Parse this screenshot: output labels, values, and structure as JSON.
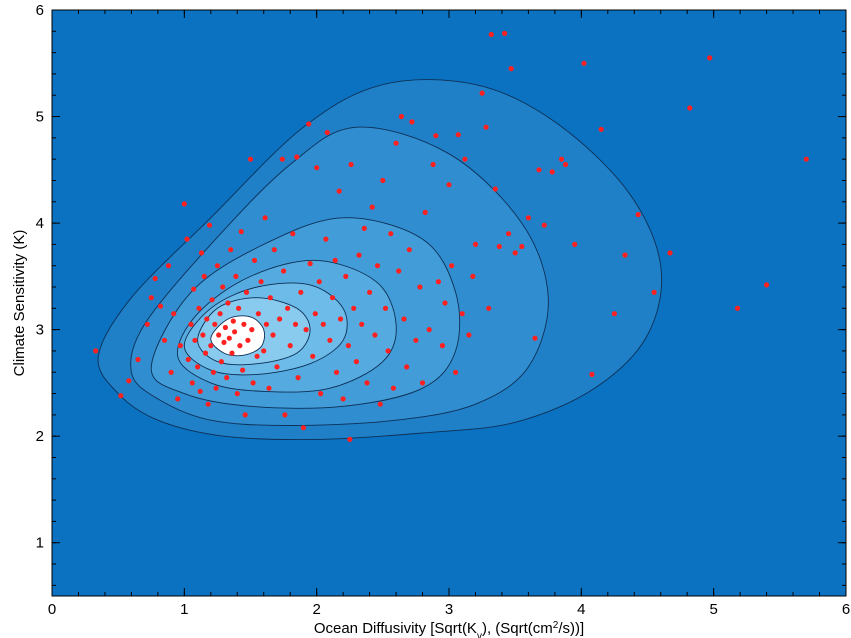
{
  "chart_data": {
    "type": "scatter",
    "title": "",
    "xlabel": "Ocean Diffusivity [Sqrt(K_v), (Sqrt(cm^2/s))]",
    "ylabel": "Climate Sensitivity (K)",
    "xlim": [
      0,
      6
    ],
    "ylim": [
      0.5,
      6
    ],
    "xticks": [
      "0",
      "1",
      "2",
      "3",
      "4",
      "5",
      "6"
    ],
    "yticks": [
      "1",
      "2",
      "3",
      "4",
      "5",
      "6"
    ],
    "grid": false,
    "legend": "none",
    "colors": {
      "background": "#0a72c0",
      "contour_fills": [
        "#1f80c8",
        "#2f8dd0",
        "#419cd8",
        "#55abe0",
        "#6cbbe8",
        "#88cbef",
        "#ffffff"
      ],
      "contour_lines": "#0d2f55",
      "points": "#ff2020"
    },
    "contours": [
      {
        "level": 1,
        "points": [
          [
            0.35,
            2.75
          ],
          [
            0.5,
            2.4
          ],
          [
            0.8,
            2.15
          ],
          [
            1.3,
            2.0
          ],
          [
            2.0,
            1.97
          ],
          [
            2.8,
            2.03
          ],
          [
            3.5,
            2.13
          ],
          [
            4.1,
            2.45
          ],
          [
            4.5,
            2.95
          ],
          [
            4.6,
            3.6
          ],
          [
            4.35,
            4.3
          ],
          [
            3.8,
            4.95
          ],
          [
            3.2,
            5.3
          ],
          [
            2.5,
            5.3
          ],
          [
            1.9,
            4.9
          ],
          [
            1.2,
            4.05
          ],
          [
            0.6,
            3.3
          ]
        ]
      },
      {
        "level": 2,
        "points": [
          [
            0.6,
            2.6
          ],
          [
            0.8,
            2.35
          ],
          [
            1.2,
            2.15
          ],
          [
            1.8,
            2.1
          ],
          [
            2.6,
            2.15
          ],
          [
            3.2,
            2.3
          ],
          [
            3.6,
            2.65
          ],
          [
            3.75,
            3.3
          ],
          [
            3.55,
            4.0
          ],
          [
            3.0,
            4.65
          ],
          [
            2.3,
            4.9
          ],
          [
            1.8,
            4.55
          ],
          [
            1.2,
            3.8
          ],
          [
            0.7,
            3.05
          ]
        ]
      },
      {
        "level": 3,
        "points": [
          [
            0.75,
            2.65
          ],
          [
            1.0,
            2.4
          ],
          [
            1.5,
            2.28
          ],
          [
            2.2,
            2.28
          ],
          [
            2.8,
            2.45
          ],
          [
            3.05,
            2.8
          ],
          [
            3.05,
            3.35
          ],
          [
            2.8,
            3.85
          ],
          [
            2.2,
            4.05
          ],
          [
            1.6,
            3.8
          ],
          [
            1.05,
            3.35
          ]
        ]
      },
      {
        "level": 4,
        "points": [
          [
            0.95,
            2.75
          ],
          [
            1.2,
            2.5
          ],
          [
            1.6,
            2.42
          ],
          [
            2.1,
            2.45
          ],
          [
            2.5,
            2.7
          ],
          [
            2.6,
            3.05
          ],
          [
            2.45,
            3.45
          ],
          [
            2.0,
            3.65
          ],
          [
            1.5,
            3.5
          ],
          [
            1.1,
            3.15
          ]
        ]
      },
      {
        "level": 5,
        "points": [
          [
            1.0,
            2.85
          ],
          [
            1.2,
            2.62
          ],
          [
            1.55,
            2.58
          ],
          [
            1.95,
            2.68
          ],
          [
            2.2,
            2.9
          ],
          [
            2.2,
            3.2
          ],
          [
            1.95,
            3.42
          ],
          [
            1.55,
            3.4
          ],
          [
            1.2,
            3.2
          ]
        ]
      },
      {
        "level": 6,
        "points": [
          [
            1.1,
            2.9
          ],
          [
            1.25,
            2.7
          ],
          [
            1.55,
            2.68
          ],
          [
            1.85,
            2.78
          ],
          [
            1.95,
            3.0
          ],
          [
            1.85,
            3.2
          ],
          [
            1.55,
            3.3
          ],
          [
            1.25,
            3.2
          ]
        ]
      },
      {
        "level": 7,
        "points": [
          [
            1.2,
            2.92
          ],
          [
            1.3,
            2.78
          ],
          [
            1.45,
            2.76
          ],
          [
            1.58,
            2.84
          ],
          [
            1.6,
            3.0
          ],
          [
            1.5,
            3.12
          ],
          [
            1.33,
            3.1
          ]
        ]
      }
    ],
    "points": [
      [
        0.33,
        2.8
      ],
      [
        0.52,
        2.38
      ],
      [
        0.58,
        2.52
      ],
      [
        0.65,
        2.72
      ],
      [
        0.72,
        3.05
      ],
      [
        0.75,
        3.3
      ],
      [
        0.78,
        3.48
      ],
      [
        0.82,
        3.22
      ],
      [
        0.85,
        2.9
      ],
      [
        0.88,
        3.6
      ],
      [
        0.9,
        2.6
      ],
      [
        0.92,
        3.15
      ],
      [
        0.95,
        2.35
      ],
      [
        0.97,
        2.85
      ],
      [
        1.0,
        4.18
      ],
      [
        1.02,
        3.85
      ],
      [
        1.03,
        2.72
      ],
      [
        1.05,
        3.05
      ],
      [
        1.06,
        2.5
      ],
      [
        1.07,
        3.38
      ],
      [
        1.08,
        2.9
      ],
      [
        1.1,
        2.65
      ],
      [
        1.11,
        3.2
      ],
      [
        1.12,
        2.42
      ],
      [
        1.13,
        3.72
      ],
      [
        1.14,
        2.95
      ],
      [
        1.15,
        3.5
      ],
      [
        1.16,
        2.78
      ],
      [
        1.17,
        3.1
      ],
      [
        1.18,
        2.3
      ],
      [
        1.19,
        3.98
      ],
      [
        1.2,
        2.85
      ],
      [
        1.21,
        3.28
      ],
      [
        1.22,
        2.6
      ],
      [
        1.23,
        3.05
      ],
      [
        1.24,
        2.45
      ],
      [
        1.25,
        3.6
      ],
      [
        1.26,
        2.95
      ],
      [
        1.27,
        3.15
      ],
      [
        1.28,
        2.7
      ],
      [
        1.29,
        3.4
      ],
      [
        1.3,
        2.88
      ],
      [
        1.31,
        3.02
      ],
      [
        1.32,
        2.55
      ],
      [
        1.33,
        3.25
      ],
      [
        1.34,
        2.92
      ],
      [
        1.35,
        3.75
      ],
      [
        1.36,
        2.78
      ],
      [
        1.37,
        3.08
      ],
      [
        1.38,
        2.98
      ],
      [
        1.39,
        3.5
      ],
      [
        1.4,
        2.4
      ],
      [
        1.41,
        3.2
      ],
      [
        1.42,
        2.85
      ],
      [
        1.43,
        3.92
      ],
      [
        1.44,
        2.62
      ],
      [
        1.45,
        3.05
      ],
      [
        1.46,
        2.2
      ],
      [
        1.47,
        3.35
      ],
      [
        1.48,
        2.9
      ],
      [
        1.5,
        4.6
      ],
      [
        1.51,
        3.0
      ],
      [
        1.52,
        2.5
      ],
      [
        1.53,
        3.65
      ],
      [
        1.55,
        2.75
      ],
      [
        1.56,
        3.15
      ],
      [
        1.58,
        3.45
      ],
      [
        1.6,
        2.8
      ],
      [
        1.61,
        4.05
      ],
      [
        1.62,
        3.05
      ],
      [
        1.64,
        2.45
      ],
      [
        1.65,
        3.3
      ],
      [
        1.67,
        2.95
      ],
      [
        1.68,
        3.75
      ],
      [
        1.7,
        2.65
      ],
      [
        1.72,
        3.1
      ],
      [
        1.74,
        4.6
      ],
      [
        1.75,
        3.55
      ],
      [
        1.76,
        2.2
      ],
      [
        1.78,
        3.2
      ],
      [
        1.8,
        2.85
      ],
      [
        1.82,
        3.9
      ],
      [
        1.84,
        3.05
      ],
      [
        1.85,
        4.62
      ],
      [
        1.86,
        2.55
      ],
      [
        1.88,
        3.35
      ],
      [
        1.9,
        2.08
      ],
      [
        1.92,
        3.0
      ],
      [
        1.94,
        4.93
      ],
      [
        1.95,
        3.62
      ],
      [
        1.97,
        2.75
      ],
      [
        1.99,
        3.15
      ],
      [
        2.0,
        4.52
      ],
      [
        2.02,
        3.45
      ],
      [
        2.03,
        2.4
      ],
      [
        2.05,
        3.05
      ],
      [
        2.07,
        3.85
      ],
      [
        2.08,
        4.85
      ],
      [
        2.1,
        2.9
      ],
      [
        2.12,
        3.3
      ],
      [
        2.14,
        3.65
      ],
      [
        2.15,
        2.6
      ],
      [
        2.17,
        4.3
      ],
      [
        2.18,
        3.1
      ],
      [
        2.2,
        2.35
      ],
      [
        2.22,
        3.5
      ],
      [
        2.24,
        2.85
      ],
      [
        2.25,
        1.97
      ],
      [
        2.26,
        4.55
      ],
      [
        2.28,
        3.2
      ],
      [
        2.3,
        2.7
      ],
      [
        2.32,
        3.7
      ],
      [
        2.34,
        3.05
      ],
      [
        2.36,
        3.95
      ],
      [
        2.38,
        2.5
      ],
      [
        2.4,
        3.35
      ],
      [
        2.42,
        4.15
      ],
      [
        2.44,
        2.95
      ],
      [
        2.46,
        3.6
      ],
      [
        2.48,
        2.3
      ],
      [
        2.5,
        4.4
      ],
      [
        2.52,
        3.2
      ],
      [
        2.54,
        2.8
      ],
      [
        2.56,
        3.9
      ],
      [
        2.58,
        2.45
      ],
      [
        2.6,
        4.75
      ],
      [
        2.62,
        3.55
      ],
      [
        2.64,
        5.0
      ],
      [
        2.66,
        3.1
      ],
      [
        2.68,
        2.65
      ],
      [
        2.7,
        3.75
      ],
      [
        2.72,
        4.95
      ],
      [
        2.75,
        2.9
      ],
      [
        2.78,
        3.4
      ],
      [
        2.8,
        2.5
      ],
      [
        2.82,
        4.1
      ],
      [
        2.85,
        3.0
      ],
      [
        2.88,
        4.55
      ],
      [
        2.9,
        4.82
      ],
      [
        2.92,
        3.45
      ],
      [
        2.95,
        2.85
      ],
      [
        2.97,
        3.25
      ],
      [
        3.0,
        4.36
      ],
      [
        3.02,
        3.6
      ],
      [
        3.05,
        2.6
      ],
      [
        3.07,
        4.83
      ],
      [
        3.1,
        3.15
      ],
      [
        3.12,
        4.6
      ],
      [
        3.15,
        2.95
      ],
      [
        3.18,
        3.5
      ],
      [
        3.2,
        3.8
      ],
      [
        3.25,
        5.22
      ],
      [
        3.28,
        4.9
      ],
      [
        3.3,
        3.2
      ],
      [
        3.32,
        5.77
      ],
      [
        3.35,
        4.32
      ],
      [
        3.38,
        3.78
      ],
      [
        3.42,
        5.78
      ],
      [
        3.45,
        3.9
      ],
      [
        3.47,
        5.45
      ],
      [
        3.5,
        3.72
      ],
      [
        3.55,
        3.78
      ],
      [
        3.6,
        4.05
      ],
      [
        3.65,
        2.92
      ],
      [
        3.68,
        4.5
      ],
      [
        3.72,
        3.98
      ],
      [
        3.78,
        4.48
      ],
      [
        3.85,
        4.6
      ],
      [
        3.88,
        4.55
      ],
      [
        3.95,
        3.8
      ],
      [
        4.02,
        5.5
      ],
      [
        4.08,
        2.58
      ],
      [
        4.15,
        4.88
      ],
      [
        4.25,
        3.15
      ],
      [
        4.33,
        3.7
      ],
      [
        4.43,
        4.08
      ],
      [
        4.55,
        3.35
      ],
      [
        4.67,
        3.72
      ],
      [
        4.82,
        5.08
      ],
      [
        4.97,
        5.55
      ],
      [
        5.18,
        3.2
      ],
      [
        5.4,
        3.42
      ],
      [
        5.7,
        4.6
      ]
    ]
  }
}
